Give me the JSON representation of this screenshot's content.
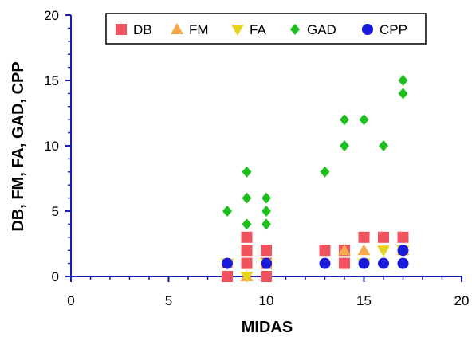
{
  "chart_data": {
    "type": "scatter",
    "title": "",
    "xlabel": "MIDAS",
    "ylabel": "DB, FM, FA, GAD, CPP",
    "xlim": [
      0,
      20
    ],
    "ylim": [
      0,
      20
    ],
    "x_ticks": [
      "0",
      "5",
      "10",
      "15",
      "20"
    ],
    "y_ticks": [
      "0",
      "5",
      "10",
      "15",
      "20"
    ],
    "grid": false,
    "legend_position": "top",
    "series": [
      {
        "name": "DB",
        "color": "#f0525e",
        "marker": "square",
        "points": [
          [
            8,
            0
          ],
          [
            9,
            3
          ],
          [
            9,
            2
          ],
          [
            9,
            1
          ],
          [
            10,
            2
          ],
          [
            10,
            1
          ],
          [
            10,
            0
          ],
          [
            13,
            2
          ],
          [
            14,
            2
          ],
          [
            14,
            1
          ],
          [
            15,
            3
          ],
          [
            16,
            3
          ],
          [
            17,
            3
          ]
        ]
      },
      {
        "name": "FM",
        "color": "#f5a94a",
        "marker": "triangle-up",
        "points": [
          [
            8,
            1
          ],
          [
            9,
            0
          ],
          [
            10,
            1
          ],
          [
            14,
            2
          ],
          [
            15,
            2
          ],
          [
            17,
            2
          ]
        ]
      },
      {
        "name": "FA",
        "color": "#e6d21a",
        "marker": "triangle-down",
        "points": [
          [
            8,
            1
          ],
          [
            9,
            0
          ],
          [
            10,
            1
          ],
          [
            15,
            1
          ],
          [
            16,
            2
          ],
          [
            17,
            2
          ]
        ]
      },
      {
        "name": "GAD",
        "color": "#1dbf1d",
        "marker": "diamond",
        "points": [
          [
            8,
            5
          ],
          [
            9,
            8
          ],
          [
            9,
            6
          ],
          [
            9,
            4
          ],
          [
            10,
            6
          ],
          [
            10,
            5
          ],
          [
            10,
            4
          ],
          [
            13,
            8
          ],
          [
            14,
            12
          ],
          [
            14,
            10
          ],
          [
            15,
            12
          ],
          [
            16,
            10
          ],
          [
            17,
            15
          ],
          [
            17,
            14
          ]
        ]
      },
      {
        "name": "CPP",
        "color": "#1a1adb",
        "marker": "circle",
        "points": [
          [
            8,
            1
          ],
          [
            10,
            1
          ],
          [
            13,
            1
          ],
          [
            15,
            1
          ],
          [
            16,
            1
          ],
          [
            17,
            1
          ],
          [
            17,
            2
          ]
        ]
      }
    ]
  }
}
